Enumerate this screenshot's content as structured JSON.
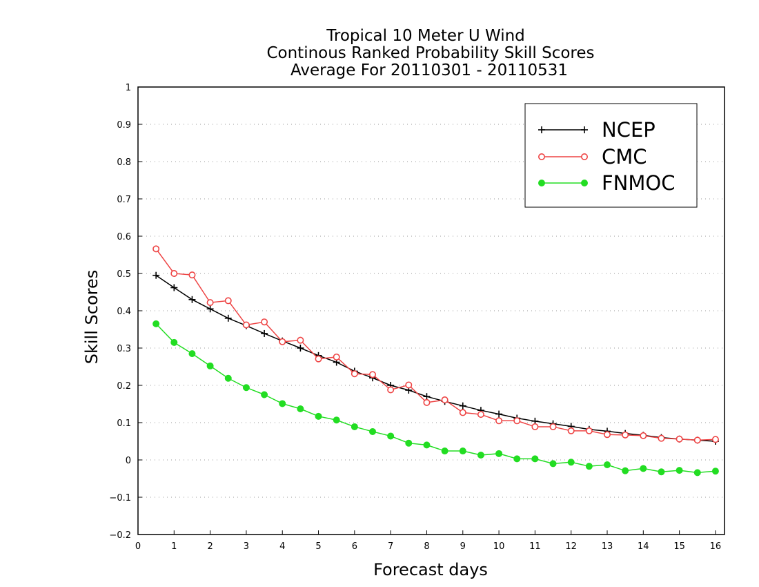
{
  "chart_data": {
    "type": "line",
    "title_lines": [
      "Tropical 10 Meter U Wind",
      "Continous Ranked Probability Skill Scores",
      "Average For 20110301 - 20110531"
    ],
    "xlabel": "Forecast days",
    "ylabel": "Skill Scores",
    "xlim": [
      0,
      16.25
    ],
    "ylim": [
      -0.2,
      1
    ],
    "x_ticks": [
      0,
      1,
      2,
      3,
      4,
      5,
      6,
      7,
      8,
      9,
      10,
      11,
      12,
      13,
      14,
      15,
      16
    ],
    "y_ticks": [
      -0.2,
      -0.1,
      0,
      0.1,
      0.2,
      0.3,
      0.4,
      0.5,
      0.6,
      0.7,
      0.8,
      0.9,
      1
    ],
    "y_tick_labels": [
      "−0.2",
      "−0.1",
      "0",
      "0.1",
      "0.2",
      "0.3",
      "0.4",
      "0.5",
      "0.6",
      "0.7",
      "0.8",
      "0.9",
      "1"
    ],
    "grid": "horizontal dotted",
    "legend_position": "top-right",
    "x": [
      0.5,
      1,
      1.5,
      2,
      2.5,
      3,
      3.5,
      4,
      4.5,
      5,
      5.5,
      6,
      6.5,
      7,
      7.5,
      8,
      8.5,
      9,
      9.5,
      10,
      10.5,
      11,
      11.5,
      12,
      12.5,
      13,
      13.5,
      14,
      14.5,
      15,
      15.5,
      16
    ],
    "series": [
      {
        "name": "NCEP",
        "color": "#000000",
        "marker": "plus",
        "values": [
          0.495,
          0.462,
          0.43,
          0.405,
          0.38,
          0.36,
          0.339,
          0.319,
          0.3,
          0.28,
          0.262,
          0.238,
          0.22,
          0.2,
          0.187,
          0.17,
          0.157,
          0.145,
          0.133,
          0.123,
          0.112,
          0.104,
          0.097,
          0.09,
          0.082,
          0.077,
          0.071,
          0.066,
          0.06,
          0.056,
          0.053,
          0.05
        ]
      },
      {
        "name": "CMC",
        "color": "#ee4444",
        "marker": "open-circle",
        "values": [
          0.566,
          0.5,
          0.496,
          0.422,
          0.427,
          0.362,
          0.37,
          0.317,
          0.321,
          0.271,
          0.276,
          0.231,
          0.229,
          0.188,
          0.201,
          0.154,
          0.161,
          0.127,
          0.122,
          0.105,
          0.105,
          0.089,
          0.089,
          0.078,
          0.078,
          0.068,
          0.067,
          0.065,
          0.058,
          0.056,
          0.053,
          0.055
        ]
      },
      {
        "name": "FNMOC",
        "color": "#22dd22",
        "marker": "filled-circle",
        "values": [
          0.365,
          0.315,
          0.285,
          0.252,
          0.219,
          0.194,
          0.175,
          0.151,
          0.137,
          0.117,
          0.107,
          0.089,
          0.076,
          0.064,
          0.045,
          0.04,
          0.024,
          0.024,
          0.013,
          0.017,
          0.003,
          0.003,
          -0.01,
          -0.006,
          -0.017,
          -0.013,
          -0.029,
          -0.023,
          -0.032,
          -0.028,
          -0.034,
          -0.03
        ]
      }
    ]
  }
}
